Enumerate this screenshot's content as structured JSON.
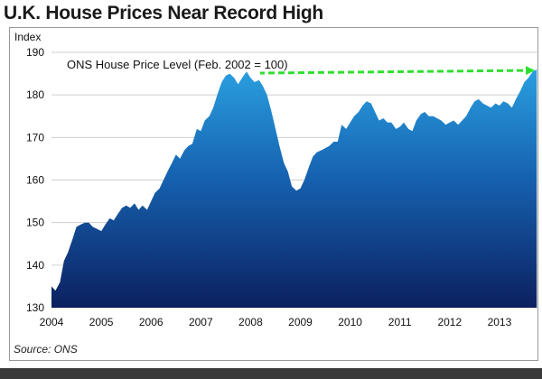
{
  "page": {
    "title": "U.K. House Prices Near Record High",
    "source": "Source: ONS"
  },
  "chart_data": {
    "type": "area",
    "title": "U.K. House Prices Near Record High",
    "ylabel": "Index",
    "xlabel": "",
    "annotation": "ONS House Price Level (Feb. 2002 = 100)",
    "xlim": [
      2004,
      2013.8
    ],
    "ylim": [
      130,
      190
    ],
    "x_ticks": [
      2004,
      2005,
      2006,
      2007,
      2008,
      2009,
      2010,
      2011,
      2012,
      2013
    ],
    "y_ticks": [
      130,
      140,
      150,
      160,
      170,
      180,
      190
    ],
    "grid": true,
    "series": [
      {
        "x": [
          2004.0,
          2004.08,
          2004.17,
          2004.25,
          2004.33,
          2004.42,
          2004.5,
          2004.58,
          2004.67,
          2004.75,
          2004.83,
          2004.92,
          2005.0,
          2005.08,
          2005.17,
          2005.25,
          2005.33,
          2005.42,
          2005.5,
          2005.58,
          2005.67,
          2005.75,
          2005.83,
          2005.92,
          2006.0,
          2006.08,
          2006.17,
          2006.25,
          2006.33,
          2006.42,
          2006.5,
          2006.58,
          2006.67,
          2006.75,
          2006.83,
          2006.92,
          2007.0,
          2007.08,
          2007.17,
          2007.25,
          2007.33,
          2007.42,
          2007.5,
          2007.58,
          2007.67,
          2007.75,
          2007.83,
          2007.92,
          2008.0,
          2008.08,
          2008.17,
          2008.25,
          2008.33,
          2008.42,
          2008.5,
          2008.58,
          2008.67,
          2008.75,
          2008.83,
          2008.92,
          2009.0,
          2009.08,
          2009.17,
          2009.25,
          2009.33,
          2009.42,
          2009.5,
          2009.58,
          2009.67,
          2009.75,
          2009.83,
          2009.92,
          2010.0,
          2010.08,
          2010.17,
          2010.25,
          2010.33,
          2010.42,
          2010.5,
          2010.58,
          2010.67,
          2010.75,
          2010.83,
          2010.92,
          2011.0,
          2011.08,
          2011.17,
          2011.25,
          2011.33,
          2011.42,
          2011.5,
          2011.58,
          2011.67,
          2011.75,
          2011.83,
          2011.92,
          2012.0,
          2012.08,
          2012.17,
          2012.25,
          2012.33,
          2012.42,
          2012.5,
          2012.58,
          2012.67,
          2012.75,
          2012.83,
          2012.92,
          2013.0,
          2013.08,
          2013.17,
          2013.25,
          2013.33,
          2013.42,
          2013.5,
          2013.58,
          2013.67,
          2013.75
        ],
        "values": [
          135,
          134,
          136,
          141,
          143,
          146,
          149,
          149.5,
          150,
          150,
          149,
          148.5,
          148,
          149.5,
          151,
          150.5,
          152,
          153.5,
          154,
          153.5,
          154.5,
          153,
          154,
          153,
          155,
          157,
          158,
          160,
          162,
          164,
          166,
          165,
          167,
          168,
          168.5,
          172,
          171.5,
          174,
          175,
          177,
          180,
          183,
          184.5,
          185,
          184,
          182.5,
          184,
          185.5,
          184,
          183,
          183.5,
          182,
          180,
          176,
          172,
          168,
          164,
          162,
          158.5,
          157.5,
          158,
          160,
          163,
          165.5,
          166.5,
          167,
          167.5,
          168,
          169,
          169,
          173,
          172,
          173.5,
          175,
          176,
          177.5,
          178.5,
          178,
          176,
          174,
          174.5,
          173.5,
          173.5,
          172,
          172.5,
          173.5,
          172,
          171.5,
          174,
          175.5,
          176,
          175,
          175,
          174.5,
          174,
          173,
          173.5,
          174,
          173,
          174,
          175,
          177,
          178.5,
          179,
          178,
          177.5,
          177,
          178,
          177.5,
          178.5,
          178,
          177,
          179,
          181,
          183,
          184,
          185.5,
          186
        ]
      }
    ],
    "colors": {
      "area_top": "#2a9fe0",
      "area_bottom": "#0c2060",
      "grid": "#cfcfcf",
      "arrow": "#2ee02e"
    }
  }
}
